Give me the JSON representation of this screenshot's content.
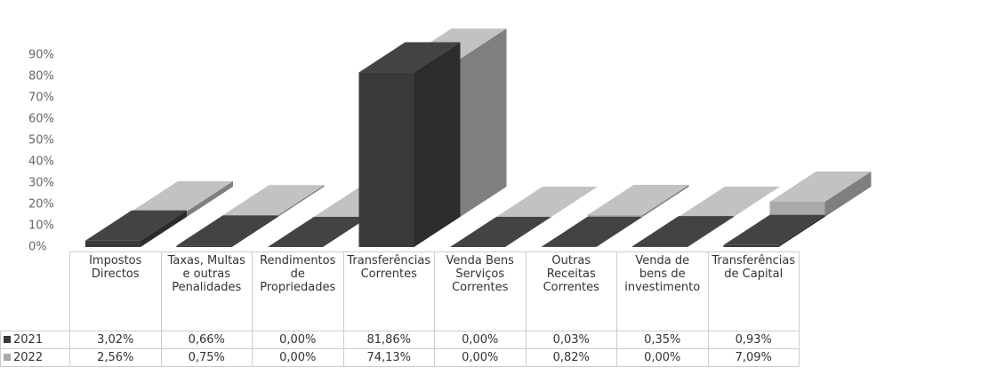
{
  "chart_data": {
    "type": "bar3d",
    "categories": [
      "Impostos Directos",
      "Taxas, Multas e outras Penalidades",
      "Rendimentos de Propriedades",
      "Transferências Correntes",
      "Venda Bens Serviços Correntes",
      "Outras Receitas Correntes",
      "Venda de bens de investimento",
      "Transferências de Capital"
    ],
    "series": [
      {
        "name": "2021",
        "color": "#3a3a3a",
        "values": [
          3.02,
          0.66,
          0,
          81.86,
          0,
          0.03,
          0.35,
          0.93
        ],
        "value_labels": [
          "3,02%",
          "0,66%",
          "0,00%",
          "81,86%",
          "0,00%",
          "0,03%",
          "0,35%",
          "0,93%"
        ]
      },
      {
        "name": "2022",
        "color": "#a9a9a9",
        "values": [
          2.56,
          0.75,
          0,
          74.13,
          0,
          0.82,
          0,
          7.09
        ],
        "value_labels": [
          "2,56%",
          "0,75%",
          "0,00%",
          "74,13%",
          "0,00%",
          "0,82%",
          "0,00%",
          "7,09%"
        ]
      }
    ],
    "ylim": [
      0,
      90
    ],
    "yticks": [
      {
        "value": 0,
        "label": "0%"
      },
      {
        "value": 10,
        "label": "10%"
      },
      {
        "value": 20,
        "label": "20%"
      },
      {
        "value": 30,
        "label": "30%"
      },
      {
        "value": 40,
        "label": "40%"
      },
      {
        "value": 50,
        "label": "50%"
      },
      {
        "value": 60,
        "label": "60%"
      },
      {
        "value": 70,
        "label": "70%"
      },
      {
        "value": 80,
        "label": "80%"
      },
      {
        "value": 90,
        "label": "90%"
      }
    ]
  }
}
